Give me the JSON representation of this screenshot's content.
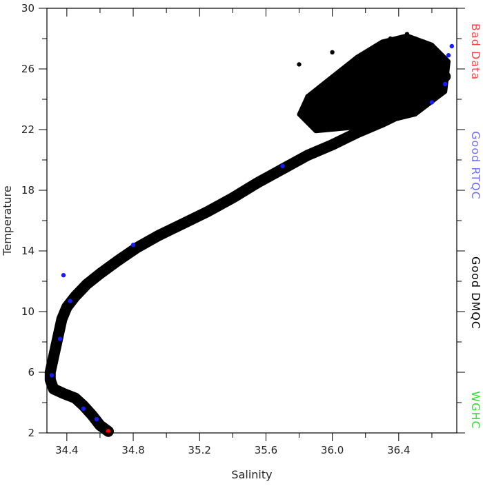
{
  "chart_data": {
    "type": "scatter",
    "title": "",
    "xlabel": "Salinity",
    "ylabel": "Temperature",
    "xlim": [
      34.28,
      36.75
    ],
    "ylim": [
      2,
      30
    ],
    "xticks": [
      34.4,
      34.8,
      35.2,
      35.6,
      36.0,
      36.4
    ],
    "xtick_labels": [
      "34.4",
      "34.8",
      "35.2",
      "35.6",
      "36.0",
      "36.4"
    ],
    "yticks": [
      2,
      6,
      10,
      14,
      18,
      22,
      26,
      30
    ],
    "ytick_labels": [
      "2",
      "6",
      "10",
      "14",
      "18",
      "22",
      "26",
      "30"
    ],
    "grid": false,
    "legend": {
      "placement": "right-vertical",
      "entries": [
        {
          "label": "Bad Data",
          "color": "#ff4444"
        },
        {
          "label": "Good RTQC",
          "color": "#6f6fff"
        },
        {
          "label": "Good DMQC",
          "color": "#000000"
        },
        {
          "label": "WGHC",
          "color": "#33dd33"
        }
      ]
    },
    "series": [
      {
        "name": "Good DMQC",
        "color": "#000000",
        "points": [
          [
            34.65,
            2.1
          ],
          [
            34.6,
            2.5
          ],
          [
            34.55,
            3.2
          ],
          [
            34.5,
            3.8
          ],
          [
            34.45,
            4.3
          ],
          [
            34.38,
            4.6
          ],
          [
            34.32,
            4.9
          ],
          [
            34.3,
            5.5
          ],
          [
            34.3,
            6.0
          ],
          [
            34.31,
            6.5
          ],
          [
            34.33,
            7.5
          ],
          [
            34.35,
            8.5
          ],
          [
            34.37,
            9.5
          ],
          [
            34.4,
            10.3
          ],
          [
            34.45,
            11.0
          ],
          [
            34.52,
            11.8
          ],
          [
            34.6,
            12.5
          ],
          [
            34.7,
            13.3
          ],
          [
            34.82,
            14.2
          ],
          [
            34.95,
            15.0
          ],
          [
            35.1,
            15.8
          ],
          [
            35.25,
            16.6
          ],
          [
            35.4,
            17.5
          ],
          [
            35.55,
            18.5
          ],
          [
            35.7,
            19.4
          ],
          [
            35.85,
            20.3
          ],
          [
            36.0,
            21.0
          ],
          [
            36.15,
            21.8
          ],
          [
            36.3,
            22.5
          ],
          [
            36.45,
            23.3
          ],
          [
            36.6,
            24.5
          ],
          [
            36.68,
            25.5
          ],
          [
            36.65,
            26.8
          ],
          [
            36.55,
            27.8
          ],
          [
            36.45,
            28.3
          ],
          [
            36.35,
            28.0
          ],
          [
            36.2,
            27.0
          ],
          [
            36.1,
            26.0
          ],
          [
            35.95,
            25.0
          ],
          [
            35.85,
            24.2
          ],
          [
            35.8,
            26.3
          ],
          [
            36.0,
            27.1
          ],
          [
            36.05,
            23.5
          ],
          [
            36.2,
            24.5
          ],
          [
            36.35,
            25.5
          ],
          [
            36.5,
            26.5
          ],
          [
            36.3,
            23.2
          ],
          [
            36.1,
            22.5
          ],
          [
            36.4,
            24.0
          ],
          [
            36.55,
            25.0
          ],
          [
            35.9,
            22.0
          ],
          [
            36.25,
            26.5
          ],
          [
            36.5,
            28.0
          ],
          [
            36.6,
            27.2
          ]
        ]
      },
      {
        "name": "Good RTQC",
        "color": "#1a1aff",
        "points": [
          [
            34.42,
            10.7
          ],
          [
            34.36,
            8.2
          ],
          [
            34.31,
            5.8
          ],
          [
            34.58,
            2.9
          ],
          [
            34.8,
            14.4
          ],
          [
            35.7,
            19.6
          ],
          [
            36.7,
            26.9
          ],
          [
            36.72,
            27.5
          ],
          [
            36.68,
            25.0
          ],
          [
            34.38,
            12.4
          ],
          [
            34.5,
            3.6
          ],
          [
            36.6,
            23.8
          ]
        ]
      },
      {
        "name": "Bad Data",
        "color": "#ff0000",
        "points": [
          [
            34.65,
            2.1
          ]
        ]
      }
    ]
  }
}
